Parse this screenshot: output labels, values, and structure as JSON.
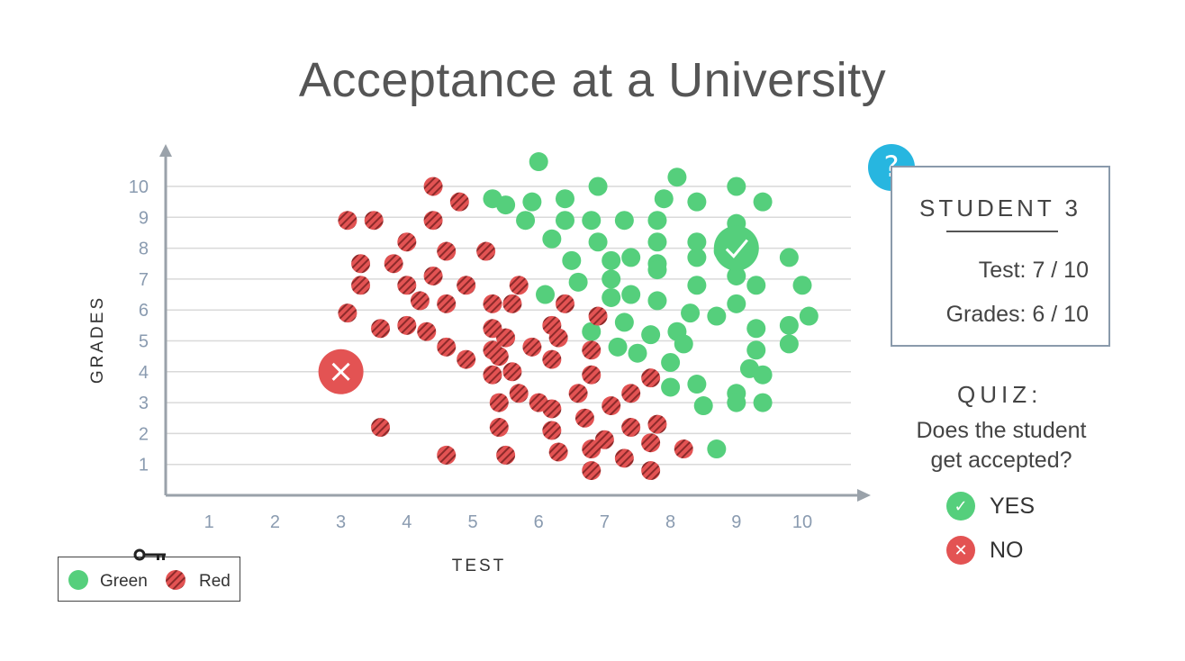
{
  "title": "Acceptance at a University",
  "colors": {
    "green": "#55cf7c",
    "red": "#e35353",
    "red_stripe": "#8c2a2a",
    "axis": "#9aa2aa",
    "tick_text": "#8a9bb0",
    "badge_blue": "#27b6e0",
    "grid": "#d9d9d9"
  },
  "chart_data": {
    "type": "scatter",
    "xlabel": "TEST",
    "ylabel": "GRADES",
    "xlim": [
      0,
      10.5
    ],
    "ylim": [
      0,
      10.5
    ],
    "xticks": [
      "1",
      "2",
      "3",
      "4",
      "5",
      "6",
      "7",
      "8",
      "9",
      "10"
    ],
    "yticks": [
      "1",
      "2",
      "3",
      "4",
      "5",
      "6",
      "7",
      "8",
      "9",
      "10"
    ],
    "grid": "horizontal",
    "legend_position": "bottom-left",
    "series": [
      {
        "name": "Green",
        "color": "#55cf7c",
        "points": [
          [
            6.0,
            10.8
          ],
          [
            8.1,
            10.3
          ],
          [
            9.0,
            10.0
          ],
          [
            6.9,
            10.0
          ],
          [
            5.3,
            9.6
          ],
          [
            5.5,
            9.4
          ],
          [
            5.9,
            9.5
          ],
          [
            6.4,
            9.6
          ],
          [
            7.9,
            9.6
          ],
          [
            8.4,
            9.5
          ],
          [
            9.4,
            9.5
          ],
          [
            5.8,
            8.9
          ],
          [
            6.4,
            8.9
          ],
          [
            6.8,
            8.9
          ],
          [
            7.3,
            8.9
          ],
          [
            7.8,
            8.9
          ],
          [
            9.0,
            8.8
          ],
          [
            6.2,
            8.3
          ],
          [
            6.9,
            8.2
          ],
          [
            7.8,
            8.2
          ],
          [
            8.4,
            8.2
          ],
          [
            8.8,
            7.9
          ],
          [
            7.1,
            7.6
          ],
          [
            7.4,
            7.7
          ],
          [
            7.8,
            7.5
          ],
          [
            8.4,
            7.7
          ],
          [
            9.8,
            7.7
          ],
          [
            6.5,
            7.6
          ],
          [
            7.8,
            7.3
          ],
          [
            9.0,
            7.1
          ],
          [
            6.6,
            6.9
          ],
          [
            7.1,
            7.0
          ],
          [
            8.4,
            6.8
          ],
          [
            9.3,
            6.8
          ],
          [
            10.0,
            6.8
          ],
          [
            6.1,
            6.5
          ],
          [
            7.1,
            6.4
          ],
          [
            7.4,
            6.5
          ],
          [
            7.8,
            6.3
          ],
          [
            9.0,
            6.2
          ],
          [
            8.3,
            5.9
          ],
          [
            8.7,
            5.8
          ],
          [
            10.1,
            5.8
          ],
          [
            7.3,
            5.6
          ],
          [
            9.3,
            5.4
          ],
          [
            9.8,
            5.5
          ],
          [
            6.8,
            5.3
          ],
          [
            7.7,
            5.2
          ],
          [
            8.1,
            5.3
          ],
          [
            8.2,
            4.9
          ],
          [
            9.8,
            4.9
          ],
          [
            7.2,
            4.8
          ],
          [
            7.5,
            4.6
          ],
          [
            9.3,
            4.7
          ],
          [
            8.0,
            4.3
          ],
          [
            9.2,
            4.1
          ],
          [
            9.4,
            3.9
          ],
          [
            8.0,
            3.5
          ],
          [
            8.4,
            3.6
          ],
          [
            9.0,
            3.3
          ],
          [
            8.5,
            2.9
          ],
          [
            9.0,
            3.0
          ],
          [
            9.4,
            3.0
          ],
          [
            8.7,
            1.5
          ]
        ]
      },
      {
        "name": "Red",
        "color": "#e35353",
        "points": [
          [
            4.4,
            10.0
          ],
          [
            4.8,
            9.5
          ],
          [
            3.1,
            8.9
          ],
          [
            3.5,
            8.9
          ],
          [
            4.4,
            8.9
          ],
          [
            4.0,
            8.2
          ],
          [
            4.6,
            7.9
          ],
          [
            5.2,
            7.9
          ],
          [
            3.3,
            7.5
          ],
          [
            3.8,
            7.5
          ],
          [
            4.4,
            7.1
          ],
          [
            3.3,
            6.8
          ],
          [
            4.0,
            6.8
          ],
          [
            4.2,
            6.3
          ],
          [
            4.9,
            6.8
          ],
          [
            5.7,
            6.8
          ],
          [
            4.6,
            6.2
          ],
          [
            5.3,
            6.2
          ],
          [
            5.6,
            6.2
          ],
          [
            6.4,
            6.2
          ],
          [
            3.1,
            5.9
          ],
          [
            3.6,
            5.4
          ],
          [
            4.0,
            5.5
          ],
          [
            4.3,
            5.3
          ],
          [
            5.3,
            5.4
          ],
          [
            6.2,
            5.5
          ],
          [
            6.3,
            5.1
          ],
          [
            6.9,
            5.8
          ],
          [
            5.5,
            5.1
          ],
          [
            4.6,
            4.8
          ],
          [
            5.3,
            4.7
          ],
          [
            5.4,
            4.5
          ],
          [
            5.9,
            4.8
          ],
          [
            6.8,
            4.7
          ],
          [
            4.9,
            4.4
          ],
          [
            5.3,
            3.9
          ],
          [
            5.6,
            4.0
          ],
          [
            6.2,
            4.4
          ],
          [
            6.8,
            3.9
          ],
          [
            7.7,
            3.8
          ],
          [
            5.7,
            3.3
          ],
          [
            5.4,
            3.0
          ],
          [
            6.0,
            3.0
          ],
          [
            6.2,
            2.8
          ],
          [
            6.6,
            3.3
          ],
          [
            7.1,
            2.9
          ],
          [
            7.4,
            3.3
          ],
          [
            3.6,
            2.2
          ],
          [
            5.4,
            2.2
          ],
          [
            6.2,
            2.1
          ],
          [
            6.7,
            2.5
          ],
          [
            7.4,
            2.2
          ],
          [
            7.8,
            2.3
          ],
          [
            4.6,
            1.3
          ],
          [
            5.5,
            1.3
          ],
          [
            6.3,
            1.4
          ],
          [
            6.8,
            1.5
          ],
          [
            7.0,
            1.8
          ],
          [
            7.3,
            1.2
          ],
          [
            7.7,
            1.7
          ],
          [
            8.2,
            1.5
          ],
          [
            6.8,
            0.8
          ],
          [
            7.7,
            0.8
          ]
        ]
      }
    ],
    "highlighted": [
      {
        "x": 3.0,
        "y": 4.0,
        "marker": "x",
        "color": "#e35353"
      },
      {
        "x": 9.0,
        "y": 8.0,
        "marker": "check",
        "color": "#55cf7c"
      }
    ]
  },
  "quiz_card": {
    "badge": "?",
    "title": "STUDENT 3",
    "test_line": "Test: 7 / 10",
    "grades_line": "Grades: 6 / 10"
  },
  "quiz": {
    "label": "QUIZ:",
    "question_line1": "Does the student",
    "question_line2": "get accepted?",
    "options": [
      {
        "label": "YES",
        "icon": "check-icon",
        "color": "#55cf7c",
        "symbol": "✓"
      },
      {
        "label": "NO",
        "icon": "close-icon",
        "color": "#e35353",
        "symbol": "✕"
      }
    ]
  },
  "legend": {
    "key_icon": "key-icon",
    "items": [
      {
        "label": "Green"
      },
      {
        "label": "Red"
      }
    ]
  }
}
